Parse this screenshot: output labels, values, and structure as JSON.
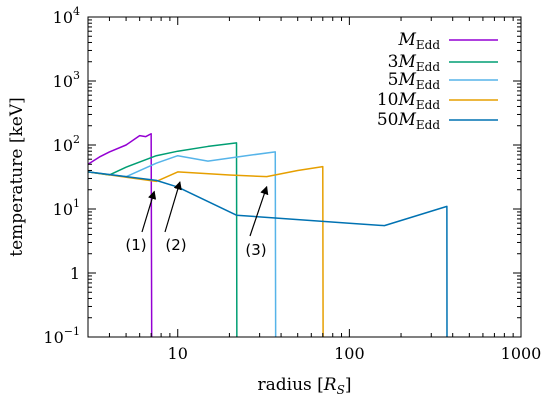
{
  "chart_data": {
    "type": "line",
    "xlabel": "radius [R_S]",
    "ylabel": "temperature [keV]",
    "x_scale": "log",
    "y_scale": "log",
    "xlim": [
      3,
      1000
    ],
    "ylim": [
      0.1,
      10000
    ],
    "x_ticks": [
      {
        "value": 10,
        "label": "10"
      },
      {
        "value": 100,
        "label": "100"
      },
      {
        "value": 1000,
        "label": "1000"
      }
    ],
    "y_ticks": [
      {
        "value": 0.1,
        "label": "10",
        "sup": "−1"
      },
      {
        "value": 1,
        "label": "1",
        "sup": ""
      },
      {
        "value": 10,
        "label": "10",
        "sup": "1"
      },
      {
        "value": 100,
        "label": "10",
        "sup": "2"
      },
      {
        "value": 1000,
        "label": "10",
        "sup": "3"
      },
      {
        "value": 10000,
        "label": "10",
        "sup": "4"
      }
    ],
    "grid": false,
    "legend_position": "top-right",
    "series": [
      {
        "legend_prefix": "",
        "color": "#9400d3",
        "points": [
          [
            3,
            50
          ],
          [
            3.5,
            65
          ],
          [
            4,
            78
          ],
          [
            5,
            100
          ],
          [
            6,
            140
          ],
          [
            6.5,
            135
          ],
          [
            7,
            150
          ],
          [
            7.05,
            0.1
          ]
        ]
      },
      {
        "legend_prefix": "3",
        "color": "#009e73",
        "points": [
          [
            3,
            38
          ],
          [
            4,
            34
          ],
          [
            5,
            45
          ],
          [
            7.5,
            68
          ],
          [
            10,
            80
          ],
          [
            15,
            95
          ],
          [
            22,
            108
          ],
          [
            22.1,
            0.1
          ]
        ]
      },
      {
        "legend_prefix": "5",
        "color": "#56b4e9",
        "points": [
          [
            3,
            38
          ],
          [
            5,
            32
          ],
          [
            7.5,
            52
          ],
          [
            10,
            68
          ],
          [
            15,
            56
          ],
          [
            25,
            68
          ],
          [
            37,
            78
          ],
          [
            37.2,
            0.1
          ]
        ]
      },
      {
        "legend_prefix": "10",
        "color": "#e69f00",
        "points": [
          [
            3,
            38
          ],
          [
            7.5,
            27
          ],
          [
            10,
            38
          ],
          [
            20,
            34
          ],
          [
            33,
            32
          ],
          [
            50,
            40
          ],
          [
            70,
            46
          ],
          [
            70.3,
            0.1
          ]
        ]
      },
      {
        "legend_prefix": "50",
        "color": "#0072b2",
        "points": [
          [
            3,
            38
          ],
          [
            7.5,
            28
          ],
          [
            10,
            22
          ],
          [
            22,
            8
          ],
          [
            100,
            6
          ],
          [
            160,
            5.5
          ],
          [
            370,
            11
          ],
          [
            370.5,
            0.1
          ]
        ]
      }
    ],
    "legend_symbol": "M",
    "legend_subscript": "Edd",
    "annotations": [
      {
        "label": "(1)",
        "arrow_to": [
          7.3,
          27
        ]
      },
      {
        "label": "(2)",
        "arrow_to": [
          10.3,
          38
        ]
      },
      {
        "label": "(3)",
        "arrow_to": [
          33,
          32
        ]
      }
    ]
  }
}
